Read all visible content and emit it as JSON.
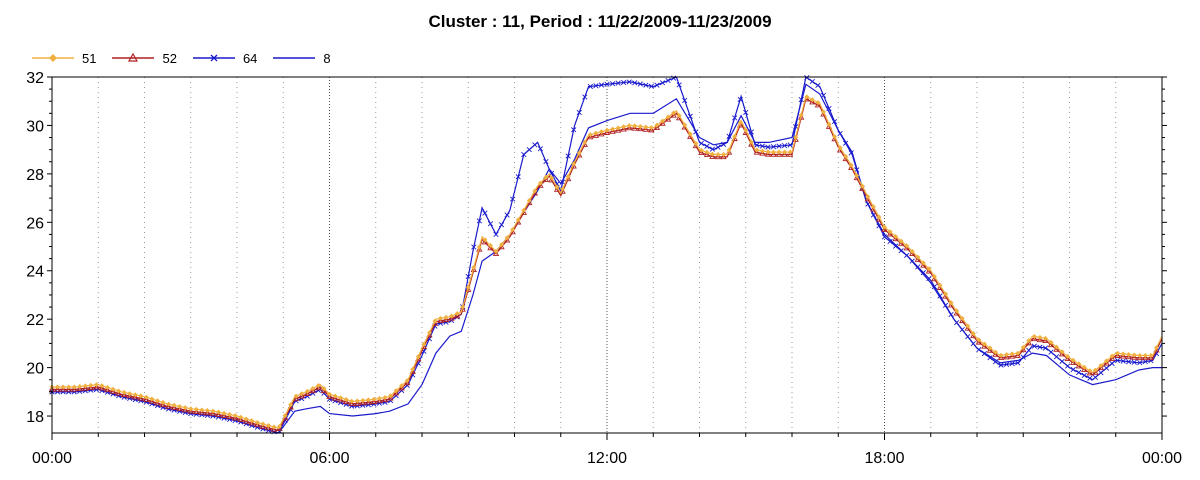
{
  "chart_data": {
    "type": "line",
    "title": "Cluster : 11, Period : 11/22/2009-11/23/2009",
    "xlabel": "",
    "ylabel": "",
    "x_unit": "hours",
    "xlim": [
      0,
      24
    ],
    "ylim": [
      17.3,
      32
    ],
    "y_ticks": [
      "18",
      "20",
      "22",
      "24",
      "26",
      "28",
      "30",
      "32"
    ],
    "x_tick_labels": [
      "00:00",
      "06:00",
      "12:00",
      "18:00",
      "00:00"
    ],
    "grid": "vertical dotted",
    "legend_position": "top-left",
    "x": [
      0,
      0.5,
      1,
      1.5,
      2,
      2.5,
      3,
      3.5,
      4,
      4.5,
      4.9,
      5.25,
      5.5,
      5.8,
      6.0,
      6.5,
      7.0,
      7.3,
      7.7,
      8.0,
      8.3,
      8.6,
      8.85,
      9.1,
      9.3,
      9.6,
      9.9,
      10.2,
      10.5,
      10.75,
      11.0,
      11.3,
      11.6,
      12.0,
      12.5,
      13.0,
      13.5,
      14.0,
      14.3,
      14.6,
      14.9,
      15.2,
      15.5,
      16.0,
      16.3,
      16.6,
      17.0,
      17.3,
      17.6,
      18.0,
      18.5,
      19.0,
      19.5,
      20.0,
      20.5,
      20.9,
      21.2,
      21.5,
      22.0,
      22.5,
      23.0,
      23.5,
      23.8,
      24.0
    ],
    "series": [
      {
        "name": "51",
        "color": "#f0b040",
        "marker": "diamond",
        "values": [
          19.2,
          19.2,
          19.3,
          19.0,
          18.8,
          18.5,
          18.3,
          18.2,
          18.0,
          17.7,
          17.5,
          18.8,
          19.0,
          19.3,
          18.9,
          18.6,
          18.7,
          18.8,
          19.5,
          20.8,
          22.0,
          22.1,
          22.3,
          24.0,
          25.4,
          24.8,
          25.5,
          26.5,
          27.5,
          28.0,
          27.2,
          28.5,
          29.6,
          29.8,
          30.0,
          29.9,
          30.6,
          29.0,
          28.8,
          28.8,
          30.2,
          29.0,
          28.9,
          28.9,
          31.2,
          30.9,
          29.2,
          28.3,
          27.2,
          25.8,
          25.0,
          24.0,
          22.5,
          21.2,
          20.5,
          20.6,
          21.3,
          21.2,
          20.4,
          19.8,
          20.6,
          20.5,
          20.5,
          21.3
        ]
      },
      {
        "name": "52",
        "color": "#b02020",
        "marker": "triangle",
        "values": [
          19.1,
          19.1,
          19.2,
          18.9,
          18.7,
          18.4,
          18.2,
          18.1,
          17.9,
          17.6,
          17.4,
          18.7,
          18.9,
          19.2,
          18.8,
          18.5,
          18.6,
          18.7,
          19.4,
          20.7,
          21.9,
          22.0,
          22.2,
          23.9,
          25.3,
          24.7,
          25.4,
          26.4,
          27.4,
          27.9,
          27.1,
          28.4,
          29.5,
          29.7,
          29.9,
          29.8,
          30.5,
          28.9,
          28.7,
          28.7,
          30.1,
          28.9,
          28.8,
          28.8,
          31.1,
          30.8,
          29.1,
          28.2,
          27.1,
          25.7,
          24.9,
          23.9,
          22.4,
          21.1,
          20.4,
          20.5,
          21.2,
          21.1,
          20.3,
          19.7,
          20.5,
          20.4,
          20.4,
          21.2
        ]
      },
      {
        "name": "64",
        "color": "#1a1acc",
        "marker": "x",
        "values": [
          19.0,
          19.0,
          19.1,
          18.8,
          18.6,
          18.3,
          18.1,
          18.0,
          17.8,
          17.5,
          17.3,
          18.6,
          18.8,
          19.1,
          18.7,
          18.4,
          18.5,
          18.6,
          19.3,
          20.5,
          21.8,
          21.9,
          22.2,
          24.8,
          26.6,
          25.5,
          26.5,
          28.8,
          29.3,
          28.2,
          27.3,
          30.0,
          31.6,
          31.7,
          31.8,
          31.6,
          32.0,
          29.3,
          29.0,
          29.3,
          31.2,
          29.2,
          29.1,
          29.2,
          32.0,
          31.6,
          29.8,
          28.8,
          26.9,
          25.4,
          24.6,
          23.6,
          22.0,
          20.8,
          20.1,
          20.2,
          20.9,
          20.8,
          20.0,
          19.5,
          20.3,
          20.2,
          20.3,
          21.0
        ]
      },
      {
        "name": "8",
        "color": "#1a1acc",
        "marker": "none",
        "values": [
          19.0,
          19.0,
          19.1,
          18.8,
          18.6,
          18.3,
          18.1,
          18.0,
          17.8,
          17.5,
          17.3,
          18.2,
          18.3,
          18.4,
          18.1,
          18.0,
          18.1,
          18.2,
          18.5,
          19.3,
          20.6,
          21.3,
          21.5,
          23.0,
          24.4,
          24.8,
          25.5,
          26.4,
          27.3,
          28.2,
          27.6,
          28.6,
          29.9,
          30.2,
          30.5,
          30.5,
          31.1,
          29.5,
          29.2,
          29.3,
          30.4,
          29.3,
          29.3,
          29.5,
          31.7,
          31.3,
          29.8,
          28.9,
          26.9,
          25.5,
          24.6,
          23.5,
          22.0,
          20.8,
          20.2,
          20.3,
          20.6,
          20.5,
          19.7,
          19.3,
          19.5,
          19.9,
          20.0,
          20.0
        ]
      }
    ]
  }
}
